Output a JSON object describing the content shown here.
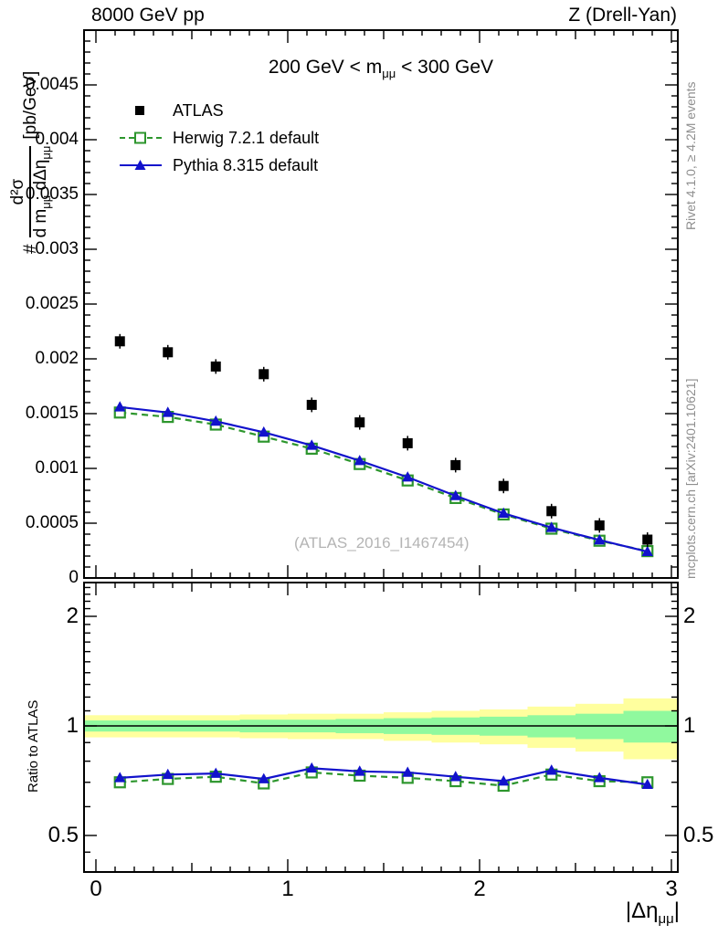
{
  "header": {
    "left": "8000 GeV pp",
    "right": "Z (Drell-Yan)"
  },
  "title": {
    "pre": "200 GeV < m",
    "sub": "μμ",
    "post": " < 300 GeV"
  },
  "watermark": "(ATLAS_2016_I1467454)",
  "side_labels": {
    "rivet": "Rivet 4.1.0, ≥ 4.2M events",
    "mcplots": "mcplots.cern.ch [arXiv:2401.10621]"
  },
  "y_axis_label": {
    "prefix": "#",
    "numerator": "d²σ",
    "den_1": "d m",
    "den_sub_1": "μμ",
    "den_2": " dΔη",
    "den_sub_2": "μμ",
    "units": "[pb/GeV]"
  },
  "x_axis_label": {
    "pre": "|Δη",
    "sub": "μμ",
    "post": "|"
  },
  "ratio_axis_label": "Ratio to ATLAS",
  "legend": {
    "items": [
      {
        "label": "ATLAS",
        "marker": "black-filled-square"
      },
      {
        "label": "Herwig 7.2.1 default",
        "marker": "green-dashed-open-square"
      },
      {
        "label": "Pythia 8.315 default",
        "marker": "blue-solid-filled-triangle"
      }
    ]
  },
  "colors": {
    "atlas": "#000000",
    "herwig": "#2d962d",
    "pythia": "#1212cc",
    "band_yellow": "#ffff9e",
    "band_green": "#90f99e",
    "unity_line": "#000000",
    "gray_text": "#8e8e8e",
    "watermark_text": "#b4b4b4"
  },
  "axes": {
    "x_ticks": [
      {
        "v": 0,
        "label": "0"
      },
      {
        "v": 1,
        "label": "1"
      },
      {
        "v": 2,
        "label": "2"
      },
      {
        "v": 3,
        "label": "3"
      }
    ],
    "main_y_ticks": [
      {
        "v": 0,
        "label": "0"
      },
      {
        "v": 0.0005,
        "label": "0.0005"
      },
      {
        "v": 0.001,
        "label": "0.001"
      },
      {
        "v": 0.0015,
        "label": "0.0015"
      },
      {
        "v": 0.002,
        "label": "0.002"
      },
      {
        "v": 0.0025,
        "label": "0.0025"
      },
      {
        "v": 0.003,
        "label": "0.003"
      },
      {
        "v": 0.0035,
        "label": "0.0035"
      },
      {
        "v": 0.004,
        "label": "0.004"
      },
      {
        "v": 0.0045,
        "label": "0.0045"
      }
    ],
    "ratio_y_ticks": [
      {
        "v": 0.5,
        "label": "0.5"
      },
      {
        "v": 1,
        "label": "1"
      },
      {
        "v": 2,
        "label": "2"
      }
    ]
  },
  "chart_data": {
    "type": "line",
    "title": "200 GeV < m_mumu < 300 GeV",
    "beam": "8000 GeV pp",
    "process": "Z (Drell-Yan)",
    "analysis": "ATLAS_2016_I1467454",
    "x_axis": {
      "label": "|delta-eta_mumu|",
      "range": [
        0,
        3
      ],
      "ticks": [
        0,
        1,
        2,
        3
      ]
    },
    "main_panel": {
      "y_label": "# d2sigma / (d m_mumu dDeltaEta_mumu) [pb/GeV]",
      "scale": "linear",
      "y_range": [
        0,
        0.005
      ],
      "y_tick_step": 0.0005,
      "grid": false
    },
    "ratio_panel": {
      "y_label": "Ratio to ATLAS",
      "scale": "log",
      "y_range": [
        0.4,
        2.48
      ],
      "ticks": [
        0.5,
        1,
        2
      ],
      "unity_line": 1,
      "bands": {
        "yellow": {
          "hi": [
            1.07,
            1.07,
            1.07,
            1.075,
            1.08,
            1.08,
            1.09,
            1.1,
            1.11,
            1.13,
            1.15,
            1.19
          ],
          "lo": [
            0.93,
            0.93,
            0.93,
            0.925,
            0.92,
            0.92,
            0.91,
            0.9,
            0.89,
            0.87,
            0.85,
            0.81
          ]
        },
        "green": {
          "hi": [
            1.035,
            1.035,
            1.035,
            1.04,
            1.04,
            1.045,
            1.05,
            1.055,
            1.06,
            1.07,
            1.08,
            1.1
          ],
          "lo": [
            0.965,
            0.965,
            0.965,
            0.96,
            0.96,
            0.955,
            0.95,
            0.945,
            0.94,
            0.93,
            0.92,
            0.9
          ]
        }
      }
    },
    "bin_edges": [
      0,
      0.25,
      0.5,
      0.75,
      1,
      1.25,
      1.5,
      1.75,
      2,
      2.25,
      2.5,
      2.75,
      3
    ],
    "bin_centers": [
      0.125,
      0.375,
      0.625,
      0.875,
      1.125,
      1.375,
      1.625,
      1.875,
      2.125,
      2.375,
      2.625,
      2.875
    ],
    "series": [
      {
        "name": "ATLAS",
        "style": {
          "marker": "filled-square",
          "color": "#000000",
          "line": "none"
        },
        "values": [
          0.00216,
          0.00206,
          0.00193,
          0.00186,
          0.00158,
          0.00142,
          0.00123,
          0.00103,
          0.00084,
          0.00061,
          0.00048,
          0.00035
        ]
      },
      {
        "name": "Herwig 7.2.1 default",
        "style": {
          "marker": "open-square",
          "color": "#2d962d",
          "line": "dashed"
        },
        "values": [
          0.00151,
          0.00147,
          0.0014,
          0.00129,
          0.00118,
          0.00104,
          0.00089,
          0.00073,
          0.00058,
          0.00045,
          0.00034,
          0.000245
        ],
        "ratio_to_atlas": [
          0.7,
          0.715,
          0.725,
          0.695,
          0.745,
          0.73,
          0.72,
          0.705,
          0.685,
          0.735,
          0.705,
          0.7
        ]
      },
      {
        "name": "Pythia 8.315 default",
        "style": {
          "marker": "filled-triangle",
          "color": "#1212cc",
          "line": "solid"
        },
        "values": [
          0.00156,
          0.00151,
          0.00143,
          0.00133,
          0.00121,
          0.00107,
          0.00092,
          0.00075,
          0.00059,
          0.00046,
          0.000346,
          0.00024
        ],
        "ratio_to_atlas": [
          0.72,
          0.735,
          0.74,
          0.715,
          0.765,
          0.75,
          0.745,
          0.725,
          0.705,
          0.755,
          0.72,
          0.69
        ]
      }
    ]
  }
}
